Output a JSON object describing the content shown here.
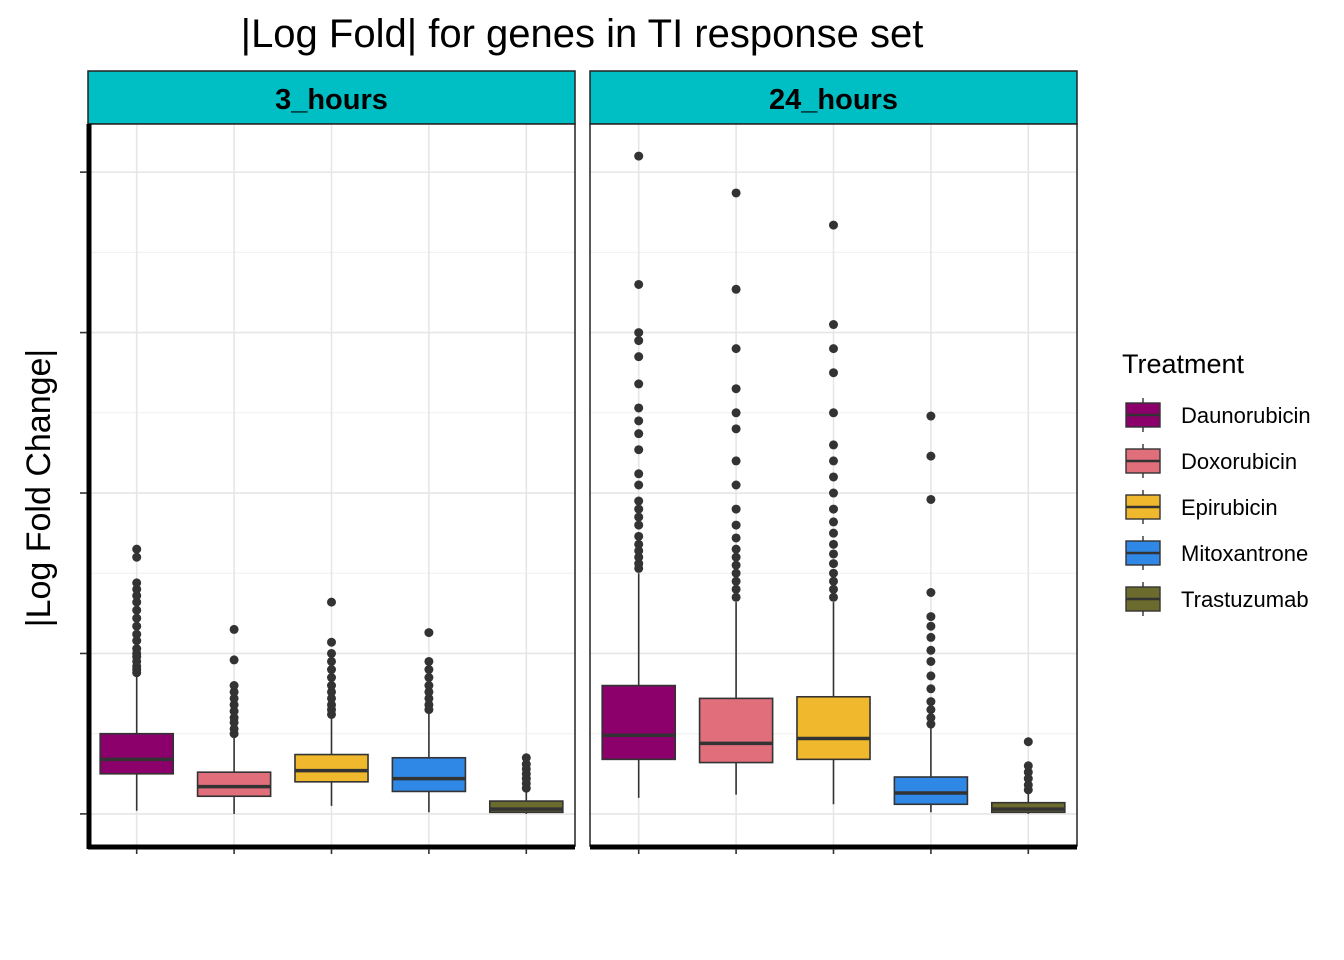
{
  "chart_data": {
    "type": "box",
    "title": "|Log Fold| for genes in TI response set",
    "xlabel": "",
    "ylabel": "|Log Fold Change|",
    "y_tick_labels_visible": false,
    "x_tick_labels_visible": false,
    "ylim": [
      -0.2,
      4.3
    ],
    "y_ticks": [
      0,
      1,
      2,
      3,
      4
    ],
    "y_minor_gridlines": [
      0.5,
      1.5,
      2.5,
      3.5
    ],
    "grid": true,
    "legend": {
      "title": "Treatment",
      "placement": "right",
      "items": [
        {
          "label": "Daunorubicin",
          "color": "#8B006B"
        },
        {
          "label": "Doxorubicin",
          "color": "#E06F7B"
        },
        {
          "label": "Epirubicin",
          "color": "#F0B82C"
        },
        {
          "label": "Mitoxantrone",
          "color": "#2F88E6"
        },
        {
          "label": "Trastuzumab",
          "color": "#6B6B2E"
        }
      ]
    },
    "panels": [
      {
        "strip": "3_hours",
        "boxes": [
          {
            "treatment": "Daunorubicin",
            "whisker_low": 0.02,
            "q1": 0.25,
            "median": 0.34,
            "q3": 0.5,
            "whisker_high": 0.86,
            "outliers": [
              0.88,
              0.9,
              0.92,
              0.95,
              0.98,
              1.0,
              1.03,
              1.08,
              1.12,
              1.17,
              1.22,
              1.27,
              1.32,
              1.36,
              1.4,
              1.44,
              1.6,
              1.65
            ]
          },
          {
            "treatment": "Doxorubicin",
            "whisker_low": 0.0,
            "q1": 0.11,
            "median": 0.17,
            "q3": 0.26,
            "whisker_high": 0.48,
            "outliers": [
              0.5,
              0.53,
              0.57,
              0.6,
              0.64,
              0.68,
              0.72,
              0.76,
              0.8,
              0.96,
              1.15
            ]
          },
          {
            "treatment": "Epirubicin",
            "whisker_low": 0.05,
            "q1": 0.2,
            "median": 0.27,
            "q3": 0.37,
            "whisker_high": 0.6,
            "outliers": [
              0.62,
              0.65,
              0.68,
              0.72,
              0.76,
              0.8,
              0.85,
              0.9,
              0.95,
              1.0,
              1.07,
              1.32
            ]
          },
          {
            "treatment": "Mitoxantrone",
            "whisker_low": 0.01,
            "q1": 0.14,
            "median": 0.22,
            "q3": 0.35,
            "whisker_high": 0.63,
            "outliers": [
              0.65,
              0.68,
              0.72,
              0.76,
              0.8,
              0.85,
              0.9,
              0.95,
              1.13
            ]
          },
          {
            "treatment": "Trastuzumab",
            "whisker_low": 0.0,
            "q1": 0.01,
            "median": 0.03,
            "q3": 0.08,
            "whisker_high": 0.14,
            "outliers": [
              0.16,
              0.19,
              0.22,
              0.25,
              0.28,
              0.31,
              0.35
            ]
          }
        ]
      },
      {
        "strip": "24_hours",
        "boxes": [
          {
            "treatment": "Daunorubicin",
            "whisker_low": 0.1,
            "q1": 0.34,
            "median": 0.49,
            "q3": 0.8,
            "whisker_high": 1.5,
            "outliers": [
              1.53,
              1.56,
              1.6,
              1.64,
              1.68,
              1.73,
              1.8,
              1.85,
              1.9,
              1.95,
              2.05,
              2.12,
              2.27,
              2.37,
              2.45,
              2.53,
              2.68,
              2.85,
              2.95,
              3.0,
              3.3,
              4.1
            ]
          },
          {
            "treatment": "Doxorubicin",
            "whisker_low": 0.12,
            "q1": 0.32,
            "median": 0.44,
            "q3": 0.72,
            "whisker_high": 1.32,
            "outliers": [
              1.35,
              1.4,
              1.45,
              1.5,
              1.55,
              1.6,
              1.65,
              1.72,
              1.8,
              1.9,
              2.05,
              2.2,
              2.4,
              2.5,
              2.65,
              2.9,
              3.27,
              3.87
            ]
          },
          {
            "treatment": "Epirubicin",
            "whisker_low": 0.06,
            "q1": 0.34,
            "median": 0.47,
            "q3": 0.73,
            "whisker_high": 1.32,
            "outliers": [
              1.35,
              1.4,
              1.45,
              1.5,
              1.56,
              1.62,
              1.68,
              1.75,
              1.82,
              1.9,
              2.0,
              2.1,
              2.2,
              2.3,
              2.5,
              2.75,
              2.9,
              3.05,
              3.67
            ]
          },
          {
            "treatment": "Mitoxantrone",
            "whisker_low": 0.01,
            "q1": 0.06,
            "median": 0.13,
            "q3": 0.23,
            "whisker_high": 0.54,
            "outliers": [
              0.56,
              0.6,
              0.65,
              0.7,
              0.78,
              0.86,
              0.95,
              1.02,
              1.1,
              1.17,
              1.23,
              1.38,
              1.96,
              2.23,
              2.48
            ]
          },
          {
            "treatment": "Trastuzumab",
            "whisker_low": 0.0,
            "q1": 0.01,
            "median": 0.03,
            "q3": 0.07,
            "whisker_high": 0.13,
            "outliers": [
              0.15,
              0.18,
              0.22,
              0.26,
              0.3,
              0.45
            ]
          }
        ]
      }
    ]
  }
}
